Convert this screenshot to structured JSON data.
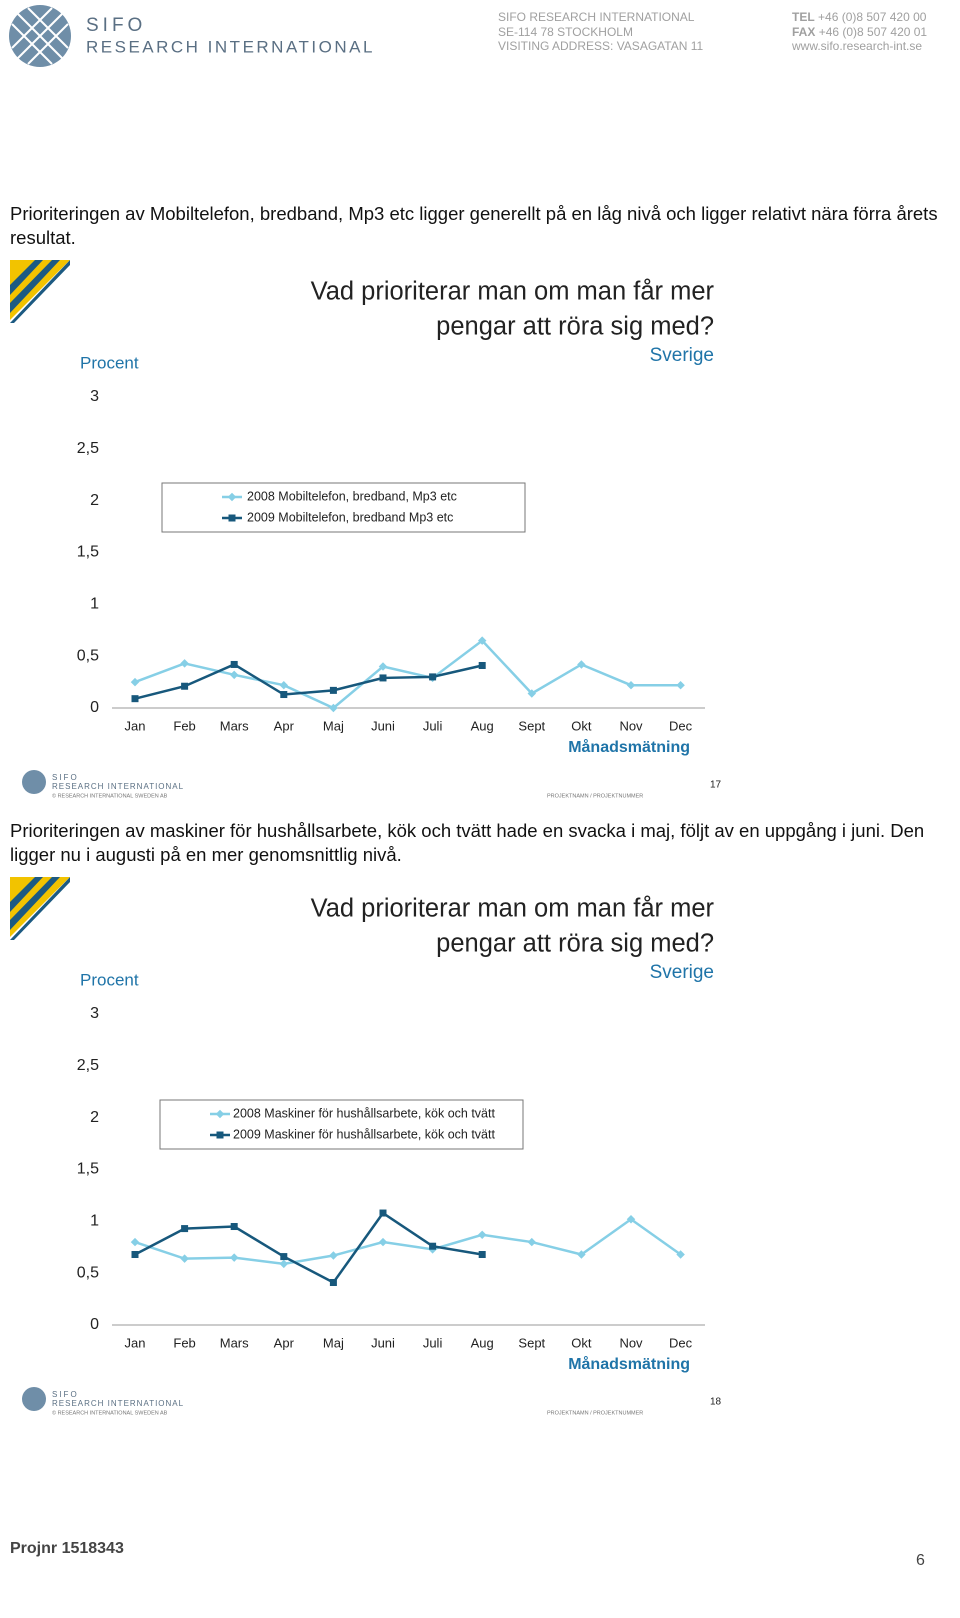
{
  "header": {
    "logo_top": "SIFO",
    "logo_bottom": "RESEARCH INTERNATIONAL",
    "address": [
      "SIFO RESEARCH INTERNATIONAL",
      "SE-114 78 STOCKHOLM",
      "VISITING ADDRESS: VASAGATAN 11"
    ],
    "contact": [
      {
        "key": "TEL",
        "text": "+46 (0)8 507 420 00"
      },
      {
        "key": "FAX",
        "text": "+46 (0)8 507 420 01"
      },
      {
        "key": "",
        "text": "www.sifo.research-int.se"
      }
    ]
  },
  "paragraphs": [
    "Prioriteringen av Mobiltelefon, bredband, Mp3 etc ligger generellt på en låg nivå och ligger relativt nära förra årets resultat.",
    "Prioriteringen av maskiner för hushållsarbete, kök och tvätt hade en svacka i maj, följt av en uppgång i juni. Den ligger nu i augusti på en mer genomsnittlig nivå."
  ],
  "chart_data": [
    {
      "type": "line",
      "title": [
        "Vad prioriterar man om man får mer",
        "pengar att röra sig med?"
      ],
      "subtitle": "Sverige",
      "y_label": "Procent",
      "x_label": "Månadsmätning",
      "categories": [
        "Jan",
        "Feb",
        "Mars",
        "Apr",
        "Maj",
        "Juni",
        "Juli",
        "Aug",
        "Sept",
        "Okt",
        "Nov",
        "Dec"
      ],
      "series": [
        {
          "name": "2008 Mobiltelefon, bredband, Mp3 etc",
          "color": "#86cfe6",
          "marker": "diamond",
          "values": [
            0.25,
            0.43,
            0.32,
            0.22,
            0,
            0.4,
            0.29,
            0.65,
            0.14,
            0.42,
            0.22,
            0.22
          ]
        },
        {
          "name": "2009 Mobiltelefon, bredband Mp3 etc",
          "color": "#17587c",
          "marker": "square",
          "values": [
            0.09,
            0.21,
            0.42,
            0.13,
            0.17,
            0.29,
            0.3,
            0.41,
            null,
            null,
            null,
            null
          ]
        }
      ],
      "ylim": [
        0,
        3
      ],
      "yticks": [
        0,
        {
          "value": 0.5,
          "label": "0,5"
        },
        1,
        {
          "value": 1.5,
          "label": "1,5"
        },
        2,
        {
          "value": 2.5,
          "label": "2,5"
        },
        3
      ],
      "grid": false,
      "legend": "top-left"
    },
    {
      "type": "line",
      "title": [
        "Vad prioriterar man om man får mer",
        "pengar att röra sig med?"
      ],
      "subtitle": "Sverige",
      "y_label": "Procent",
      "x_label": "Månadsmätning",
      "categories": [
        "Jan",
        "Feb",
        "Mars",
        "Apr",
        "Maj",
        "Juni",
        "Juli",
        "Aug",
        "Sept",
        "Okt",
        "Nov",
        "Dec"
      ],
      "series": [
        {
          "name": "2008 Maskiner för hushållsarbete, kök och tvätt",
          "color": "#86cfe6",
          "marker": "diamond",
          "values": [
            0.8,
            0.64,
            0.65,
            0.59,
            0.67,
            0.8,
            0.73,
            0.87,
            0.8,
            0.68,
            1.02,
            0.68
          ]
        },
        {
          "name": "2009 Maskiner för hushållsarbete, kök och tvätt",
          "color": "#17587c",
          "marker": "square",
          "values": [
            0.68,
            0.93,
            0.95,
            0.66,
            0.41,
            1.08,
            0.76,
            0.68,
            null,
            null,
            null,
            null
          ]
        }
      ],
      "ylim": [
        0,
        3
      ],
      "yticks": [
        0,
        {
          "value": 0.5,
          "label": "0,5"
        },
        1,
        {
          "value": 1.5,
          "label": "1,5"
        },
        2,
        {
          "value": 2.5,
          "label": "2,5"
        },
        3
      ],
      "grid": false,
      "legend": "top-left"
    }
  ],
  "slide_footers": [
    {
      "logo_top": "SIFO",
      "logo_bottom": "RESEARCH INTERNATIONAL",
      "copyright": "© RESEARCH INTERNATIONAL SWEDEN AB",
      "project": "PROJEKTNAMN / PROJEKTNUMMER",
      "page": "17"
    },
    {
      "logo_top": "SIFO",
      "logo_bottom": "RESEARCH INTERNATIONAL",
      "copyright": "© RESEARCH INTERNATIONAL SWEDEN AB",
      "project": "PROJEKTNAMN / PROJEKTNUMMER",
      "page": "18"
    }
  ],
  "footer": {
    "project": "Projnr 1518343",
    "page": "6"
  }
}
